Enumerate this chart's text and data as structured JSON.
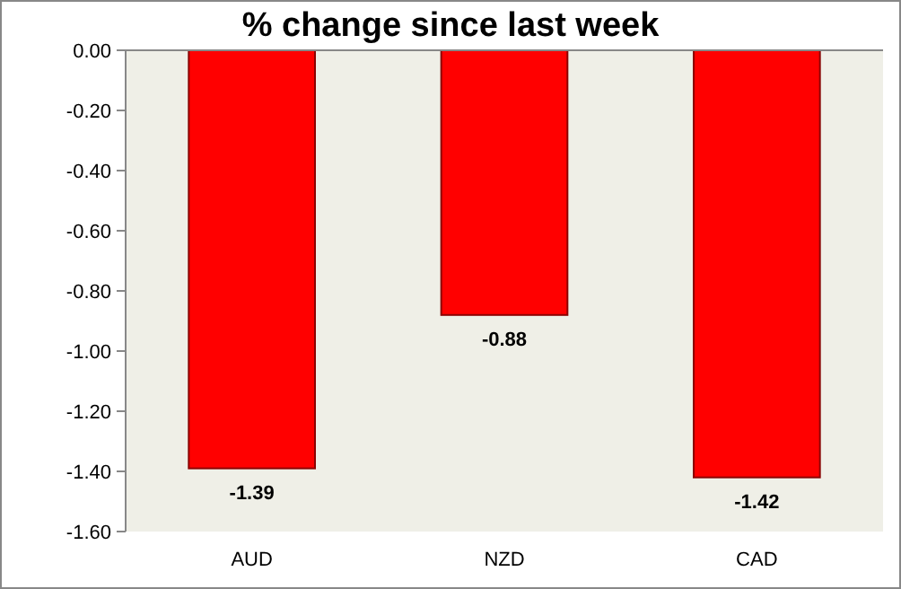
{
  "chart_data": {
    "type": "bar",
    "title": "% change since last week",
    "categories": [
      "AUD",
      "NZD",
      "CAD"
    ],
    "values": [
      -1.39,
      -0.88,
      -1.42
    ],
    "color": "#ff0000",
    "ylim": [
      -1.6,
      0
    ],
    "yticks": [
      {
        "value": 0,
        "label": "0.00"
      },
      {
        "value": -0.2,
        "label": "-0.20"
      },
      {
        "value": -0.4,
        "label": "-0.40"
      },
      {
        "value": -0.6,
        "label": "-0.60"
      },
      {
        "value": -0.8,
        "label": "-0.80"
      },
      {
        "value": -1,
        "label": "-1.00"
      },
      {
        "value": -1.2,
        "label": "-1.20"
      },
      {
        "value": -1.4,
        "label": "-1.40"
      },
      {
        "value": -1.6,
        "label": "-1.60"
      }
    ],
    "data_labels": true,
    "grid": false
  }
}
